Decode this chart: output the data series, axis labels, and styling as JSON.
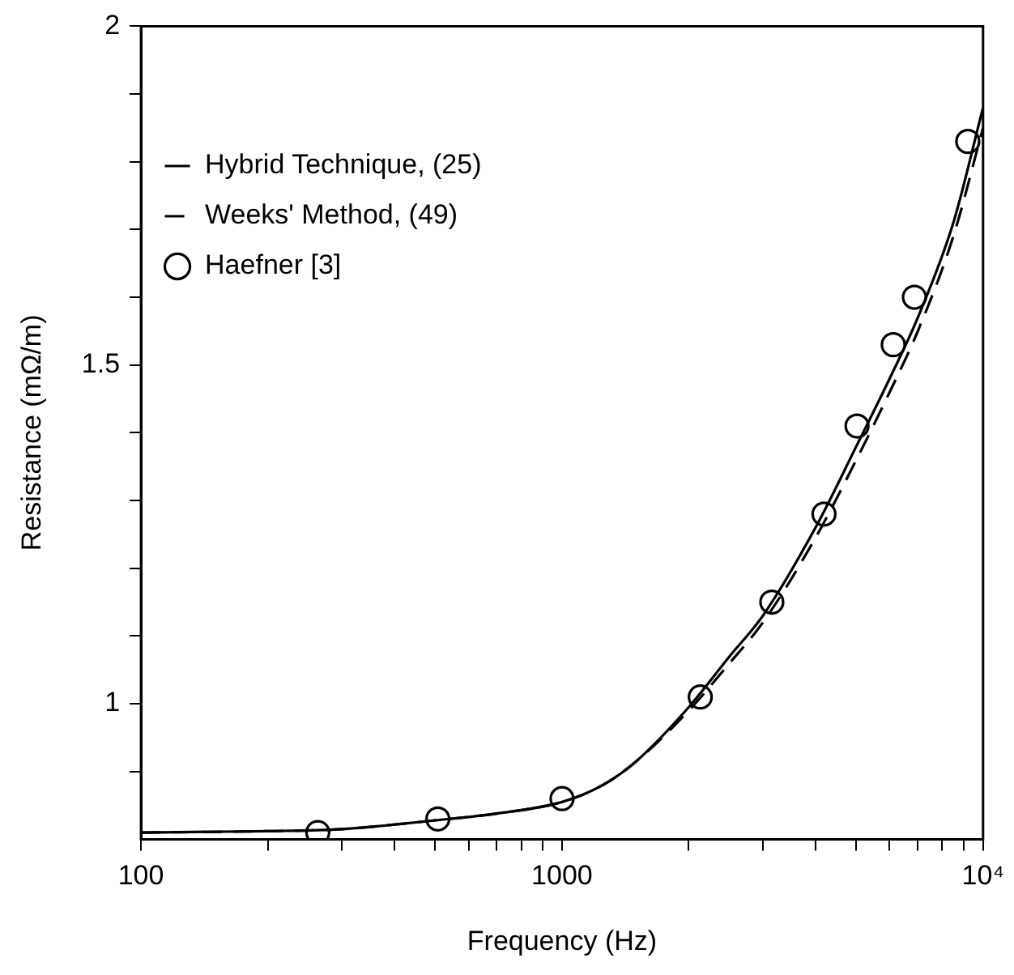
{
  "chart_data": {
    "type": "line",
    "xlabel": "Frequency (Hz)",
    "ylabel": "Resistance (mΩ/m)",
    "log": "x",
    "xlim": [
      100,
      10000
    ],
    "ylim": [
      0.8,
      2
    ],
    "xticks": [
      100,
      {
        "value": 200,
        "label": null
      },
      {
        "value": 300,
        "label": null
      },
      {
        "value": 400,
        "label": null
      },
      {
        "value": 500,
        "label": null
      },
      {
        "value": 600,
        "label": null
      },
      {
        "value": 700,
        "label": null
      },
      {
        "value": 800,
        "label": null
      },
      {
        "value": 900,
        "label": null
      },
      1000,
      {
        "value": 2000,
        "label": null
      },
      {
        "value": 3000,
        "label": null
      },
      {
        "value": 4000,
        "label": null
      },
      {
        "value": 5000,
        "label": null
      },
      {
        "value": 6000,
        "label": null
      },
      {
        "value": 7000,
        "label": null
      },
      {
        "value": 8000,
        "label": null
      },
      {
        "value": 9000,
        "label": null
      },
      {
        "value": 10000,
        "label": "10⁴"
      }
    ],
    "yticks": [
      {
        "value": 0.9,
        "label": null
      },
      1,
      {
        "value": 1.1,
        "label": null
      },
      {
        "value": 1.2,
        "label": null
      },
      {
        "value": 1.3,
        "label": null
      },
      {
        "value": 1.4,
        "label": null
      },
      1.5,
      {
        "value": 1.6,
        "label": null
      },
      {
        "value": 1.7,
        "label": null
      },
      {
        "value": 1.8,
        "label": null
      },
      {
        "value": 1.9,
        "label": null
      },
      2
    ],
    "grid": false,
    "legend": "top left",
    "series": [
      {
        "name": "Hybrid Technique, (25)",
        "line_style": "solid",
        "marker": "none",
        "color": "#000000",
        "x": [
          100,
          200,
          300,
          500,
          700,
          1000,
          1250,
          1500,
          2000,
          2500,
          3000,
          4000,
          5000,
          6000,
          7000,
          8500,
          10000
        ],
        "values": [
          0.81,
          0.812,
          0.815,
          0.828,
          0.838,
          0.855,
          0.88,
          0.915,
          0.995,
          1.07,
          1.13,
          1.26,
          1.38,
          1.48,
          1.57,
          1.71,
          1.88
        ]
      },
      {
        "name": "Weeks' Method, (49)",
        "line_style": "dashed",
        "marker": "none",
        "color": "#000000",
        "x": [
          100,
          200,
          300,
          500,
          700,
          1000,
          1250,
          1500,
          2000,
          2500,
          3000,
          4000,
          5000,
          6000,
          7000,
          8500,
          10000
        ],
        "values": [
          0.81,
          0.812,
          0.815,
          0.828,
          0.838,
          0.855,
          0.88,
          0.915,
          0.99,
          1.06,
          1.12,
          1.245,
          1.36,
          1.46,
          1.55,
          1.69,
          1.85
        ]
      },
      {
        "name": "Haefner [3]",
        "type": "scatter",
        "marker": "circle",
        "color": "#000000",
        "x": [
          263,
          507,
          1000,
          2130,
          3150,
          4190,
          5020,
          6120,
          6870,
          9200
        ],
        "values": [
          0.81,
          0.83,
          0.86,
          1.01,
          1.15,
          1.28,
          1.41,
          1.53,
          1.6,
          1.83
        ]
      }
    ]
  }
}
